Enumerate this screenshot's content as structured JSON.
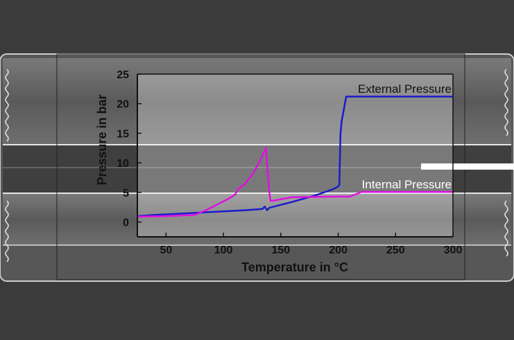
{
  "colors": {
    "background": "#3b3b3b",
    "external": "#1a1acc",
    "internal": "#e010e0",
    "axis": "#111111"
  },
  "chart_data": {
    "type": "line",
    "title": "",
    "xlabel": "Temperature in °C",
    "ylabel": "Pressure in bar",
    "xlim": [
      25,
      300
    ],
    "ylim": [
      -2.5,
      25
    ],
    "x_ticks": [
      50,
      100,
      150,
      200,
      250,
      300
    ],
    "y_ticks": [
      0,
      5,
      10,
      15,
      20,
      25
    ],
    "grid": false,
    "series": [
      {
        "name": "External Pressure",
        "color": "#1a1acc",
        "x": [
          25,
          40,
          60,
          80,
          100,
          120,
          134,
          136,
          138,
          140,
          160,
          180,
          195,
          200,
          201,
          202,
          203,
          207,
          300
        ],
        "y": [
          1.0,
          1.2,
          1.4,
          1.6,
          1.8,
          2.0,
          2.2,
          2.6,
          2.0,
          2.4,
          3.4,
          4.5,
          5.5,
          6.0,
          6.3,
          15.0,
          17.0,
          21.2,
          21.2
        ]
      },
      {
        "name": "Internal Pressure",
        "color": "#e010e0",
        "x": [
          25,
          50,
          75,
          85,
          95,
          105,
          110,
          113,
          118,
          125,
          131,
          137,
          140,
          141,
          143,
          160,
          200,
          210,
          217,
          220,
          225,
          300
        ],
        "y": [
          0.9,
          1.0,
          1.2,
          2.0,
          3.0,
          4.0,
          4.6,
          5.6,
          6.3,
          8.0,
          10.0,
          12.5,
          5.0,
          3.6,
          3.6,
          4.2,
          4.3,
          4.3,
          4.8,
          5.1,
          5.1,
          5.1
        ]
      }
    ]
  }
}
